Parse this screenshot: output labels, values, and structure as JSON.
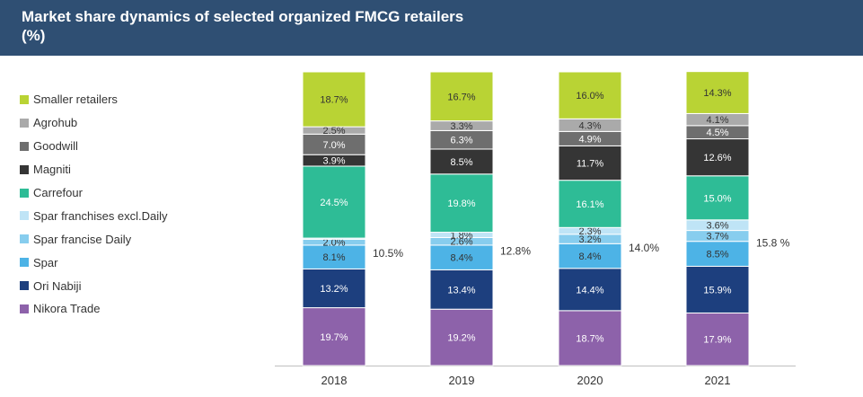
{
  "header": {
    "title": "Market share dynamics of selected organized FMCG retailers\n (%)"
  },
  "colors": {
    "header_bg": "#2f4f73",
    "axis": "#bfbfbf"
  },
  "chart_data": {
    "type": "bar",
    "stacked": true,
    "title": "Market share dynamics of selected organized FMCG retailers (%)",
    "xlabel": "",
    "ylabel": "",
    "ylim": [
      0,
      100
    ],
    "grid": false,
    "legend_position": "left",
    "categories": [
      "2018",
      "2019",
      "2020",
      "2021"
    ],
    "series": [
      {
        "name": "Nikora Trade",
        "color": "#8d62aa",
        "values": [
          19.7,
          19.2,
          18.7,
          17.9
        ],
        "labels": [
          "19.7%",
          "19.2%",
          "18.7%",
          "17.9%"
        ]
      },
      {
        "name": "Ori Nabiji",
        "color": "#1d3f7e",
        "values": [
          13.2,
          13.4,
          14.4,
          15.9
        ],
        "labels": [
          "13.2%",
          "13.4%",
          "14.4%",
          "15.9%"
        ]
      },
      {
        "name": "Spar",
        "color": "#4db3e6",
        "values": [
          8.1,
          8.4,
          8.4,
          8.5
        ],
        "labels": [
          "8.1%",
          "8.4%",
          "8.4%",
          "8.5%"
        ]
      },
      {
        "name": "Spar francise Daily",
        "color": "#87cdee",
        "values": [
          2.0,
          2.6,
          3.2,
          3.7
        ],
        "labels": [
          "2.0%",
          "2.6%",
          "3.2%",
          "3.7%"
        ]
      },
      {
        "name": "Spar franchises excl.Daily",
        "color": "#bfe4f6",
        "values": [
          0.4,
          1.8,
          2.3,
          3.6
        ],
        "labels": [
          "",
          "1.8%",
          "2.3%",
          "3.6%"
        ]
      },
      {
        "name": "Carrefour",
        "color": "#2ebc96",
        "values": [
          24.5,
          19.8,
          16.1,
          15.0
        ],
        "labels": [
          "24.5%",
          "19.8%",
          "16.1%",
          "15.0%"
        ]
      },
      {
        "name": "Magniti",
        "color": "#353535",
        "values": [
          3.9,
          8.5,
          11.7,
          12.6
        ],
        "labels": [
          "3.9%",
          "8.5%",
          "11.7%",
          "12.6%"
        ]
      },
      {
        "name": "Goodwill",
        "color": "#6e6e6e",
        "values": [
          7.0,
          6.3,
          4.9,
          4.5
        ],
        "labels": [
          "7.0%",
          "6.3%",
          "4.9%",
          "4.5%"
        ]
      },
      {
        "name": "Agrohub",
        "color": "#aaaaaa",
        "values": [
          2.5,
          3.3,
          4.3,
          4.1
        ],
        "labels": [
          "2.5%",
          "3.3%",
          "4.3%",
          "4.1%"
        ]
      },
      {
        "name": "Smaller retailers",
        "color": "#b9d334",
        "values": [
          18.7,
          16.7,
          16.0,
          14.3
        ],
        "labels": [
          "18.7%",
          "16.7%",
          "16.0%",
          "14.3%"
        ]
      }
    ],
    "annotations": [
      {
        "category": "2018",
        "text": "10.5%",
        "describes": "Spar total"
      },
      {
        "category": "2019",
        "text": "12.8%",
        "describes": "Spar total"
      },
      {
        "category": "2020",
        "text": "14.0%",
        "describes": "Spar total"
      },
      {
        "category": "2021",
        "text": "15.8 %",
        "describes": "Spar total"
      }
    ]
  }
}
